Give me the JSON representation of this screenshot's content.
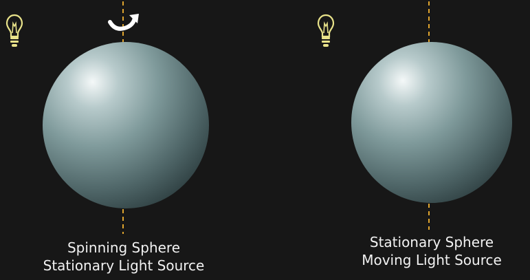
{
  "panels": [
    {
      "caption_line1": "Spinning Sphere",
      "caption_line2": "Stationary Light Source"
    },
    {
      "caption_line1": "Stationary Sphere",
      "caption_line2": "Moving Light Source"
    }
  ],
  "icons": [
    "lightbulb-icon",
    "rotate-arrow-icon"
  ],
  "colors": {
    "background": "#171717",
    "axis": "#e0a52e",
    "bulb": "#e9e38a",
    "sphere_highlight": "#f2f7f7",
    "sphere_mid": "#7f9a9b",
    "sphere_shadow": "#2e3f42",
    "caption": "#f2f2f2"
  }
}
